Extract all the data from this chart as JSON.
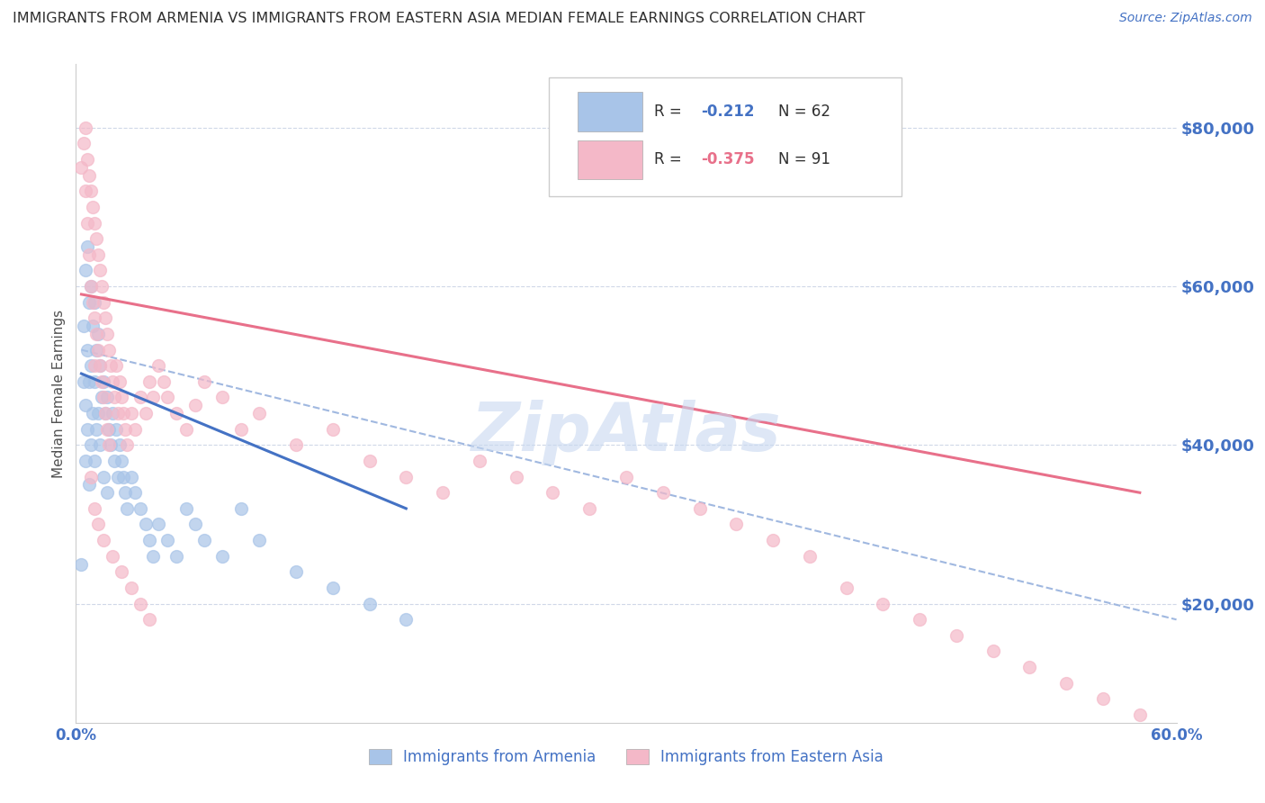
{
  "title": "IMMIGRANTS FROM ARMENIA VS IMMIGRANTS FROM EASTERN ASIA MEDIAN FEMALE EARNINGS CORRELATION CHART",
  "source": "Source: ZipAtlas.com",
  "ylabel": "Median Female Earnings",
  "y_ticks": [
    20000,
    40000,
    60000,
    80000
  ],
  "y_tick_labels": [
    "$20,000",
    "$40,000",
    "$60,000",
    "$80,000"
  ],
  "xlim": [
    0.0,
    0.6
  ],
  "ylim": [
    5000,
    88000
  ],
  "blue_color": "#a8c4e8",
  "pink_color": "#f4b8c8",
  "blue_line_color": "#4472c4",
  "pink_line_color": "#e8708a",
  "dashed_line_color": "#a0b8e0",
  "watermark_color": "#c8d8f0",
  "legend1_label": "Immigrants from Armenia",
  "legend2_label": "Immigrants from Eastern Asia",
  "background_color": "#ffffff",
  "grid_color": "#d0d8e8",
  "title_color": "#303030",
  "axis_label_color": "#4472c4",
  "blue_x": [
    0.003,
    0.004,
    0.004,
    0.005,
    0.005,
    0.005,
    0.006,
    0.006,
    0.006,
    0.007,
    0.007,
    0.007,
    0.008,
    0.008,
    0.008,
    0.009,
    0.009,
    0.01,
    0.01,
    0.01,
    0.011,
    0.011,
    0.012,
    0.012,
    0.013,
    0.013,
    0.014,
    0.015,
    0.015,
    0.016,
    0.017,
    0.017,
    0.018,
    0.019,
    0.02,
    0.021,
    0.022,
    0.023,
    0.024,
    0.025,
    0.026,
    0.027,
    0.028,
    0.03,
    0.032,
    0.035,
    0.038,
    0.04,
    0.042,
    0.045,
    0.05,
    0.055,
    0.06,
    0.065,
    0.07,
    0.08,
    0.09,
    0.1,
    0.12,
    0.14,
    0.16,
    0.18
  ],
  "blue_y": [
    25000,
    55000,
    48000,
    62000,
    45000,
    38000,
    65000,
    52000,
    42000,
    58000,
    48000,
    35000,
    60000,
    50000,
    40000,
    55000,
    44000,
    58000,
    48000,
    38000,
    52000,
    42000,
    54000,
    44000,
    50000,
    40000,
    46000,
    48000,
    36000,
    44000,
    46000,
    34000,
    42000,
    40000,
    44000,
    38000,
    42000,
    36000,
    40000,
    38000,
    36000,
    34000,
    32000,
    36000,
    34000,
    32000,
    30000,
    28000,
    26000,
    30000,
    28000,
    26000,
    32000,
    30000,
    28000,
    26000,
    32000,
    28000,
    24000,
    22000,
    20000,
    18000
  ],
  "pink_x": [
    0.003,
    0.004,
    0.005,
    0.005,
    0.006,
    0.006,
    0.007,
    0.007,
    0.008,
    0.008,
    0.009,
    0.009,
    0.01,
    0.01,
    0.01,
    0.011,
    0.011,
    0.012,
    0.012,
    0.013,
    0.013,
    0.014,
    0.014,
    0.015,
    0.015,
    0.016,
    0.016,
    0.017,
    0.017,
    0.018,
    0.018,
    0.019,
    0.02,
    0.021,
    0.022,
    0.023,
    0.024,
    0.025,
    0.026,
    0.027,
    0.028,
    0.03,
    0.032,
    0.035,
    0.038,
    0.04,
    0.042,
    0.045,
    0.048,
    0.05,
    0.055,
    0.06,
    0.065,
    0.07,
    0.08,
    0.09,
    0.1,
    0.12,
    0.14,
    0.16,
    0.18,
    0.2,
    0.22,
    0.24,
    0.26,
    0.28,
    0.3,
    0.32,
    0.34,
    0.36,
    0.38,
    0.4,
    0.42,
    0.44,
    0.46,
    0.48,
    0.5,
    0.52,
    0.54,
    0.56,
    0.58,
    0.6,
    0.008,
    0.01,
    0.012,
    0.015,
    0.02,
    0.025,
    0.03,
    0.035,
    0.04
  ],
  "pink_y": [
    75000,
    78000,
    80000,
    72000,
    76000,
    68000,
    74000,
    64000,
    72000,
    60000,
    70000,
    58000,
    68000,
    56000,
    50000,
    66000,
    54000,
    64000,
    52000,
    62000,
    50000,
    60000,
    48000,
    58000,
    46000,
    56000,
    44000,
    54000,
    42000,
    52000,
    40000,
    50000,
    48000,
    46000,
    50000,
    44000,
    48000,
    46000,
    44000,
    42000,
    40000,
    44000,
    42000,
    46000,
    44000,
    48000,
    46000,
    50000,
    48000,
    46000,
    44000,
    42000,
    45000,
    48000,
    46000,
    42000,
    44000,
    40000,
    42000,
    38000,
    36000,
    34000,
    38000,
    36000,
    34000,
    32000,
    36000,
    34000,
    32000,
    30000,
    28000,
    26000,
    22000,
    20000,
    18000,
    16000,
    14000,
    12000,
    10000,
    8000,
    6000,
    4000,
    36000,
    32000,
    30000,
    28000,
    26000,
    24000,
    22000,
    20000,
    18000
  ],
  "blue_line_x": [
    0.003,
    0.18
  ],
  "blue_line_y": [
    49000,
    32000
  ],
  "pink_line_x": [
    0.003,
    0.58
  ],
  "pink_line_y": [
    59000,
    34000
  ],
  "dashed_line_x": [
    0.003,
    0.6
  ],
  "dashed_line_y": [
    52000,
    18000
  ],
  "marker_size": 100
}
